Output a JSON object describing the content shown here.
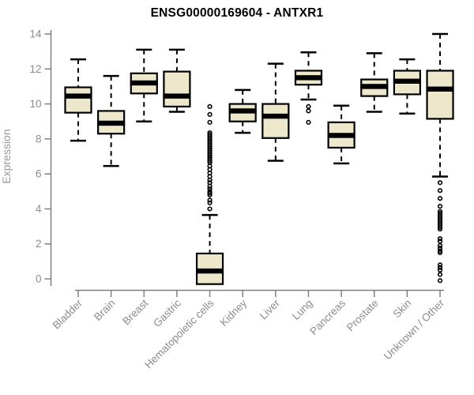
{
  "chart_data": {
    "type": "boxplot",
    "title": "ENSG00000169604 - ANTXR1",
    "ylabel": "Expression",
    "xlabel": "",
    "ylim": [
      0,
      14
    ],
    "yticks": [
      0,
      2,
      4,
      6,
      8,
      10,
      12,
      14
    ],
    "grid": false,
    "legend": false,
    "categories": [
      "Bladder",
      "Brain",
      "Breast",
      "Gastric",
      "Hematopoietic cells",
      "Kidney",
      "Liver",
      "Lung",
      "Pancreas",
      "Prostate",
      "Skin",
      "Unknown / Other"
    ],
    "boxes": [
      {
        "category": "Bladder",
        "whisker_low": 7.9,
        "q1": 9.5,
        "median": 10.45,
        "q3": 10.95,
        "whisker_high": 12.55,
        "outliers": []
      },
      {
        "category": "Brain",
        "whisker_low": 6.45,
        "q1": 8.3,
        "median": 8.9,
        "q3": 9.6,
        "whisker_high": 11.6,
        "outliers": []
      },
      {
        "category": "Breast",
        "whisker_low": 9.0,
        "q1": 10.6,
        "median": 11.2,
        "q3": 11.75,
        "whisker_high": 13.1,
        "outliers": []
      },
      {
        "category": "Gastric",
        "whisker_low": 9.55,
        "q1": 9.85,
        "median": 10.45,
        "q3": 11.85,
        "whisker_high": 13.1,
        "outliers": []
      },
      {
        "category": "Hematopoietic cells",
        "whisker_low": -0.3,
        "q1": -0.3,
        "median": 0.45,
        "q3": 1.45,
        "whisker_high": 3.65,
        "outliers": [
          9.85,
          9.4,
          8.95,
          8.35,
          8.25,
          8.15,
          8.05,
          7.95,
          7.85,
          7.75,
          7.65,
          7.55,
          7.45,
          7.35,
          7.25,
          7.15,
          7.05,
          6.95,
          6.85,
          6.75,
          6.65,
          6.45,
          6.25,
          6.05,
          5.85,
          5.65,
          5.5,
          5.3,
          5.15,
          5.0,
          4.9,
          4.8,
          4.5,
          4.35,
          4.0
        ]
      },
      {
        "category": "Kidney",
        "whisker_low": 8.35,
        "q1": 9.0,
        "median": 9.6,
        "q3": 10.0,
        "whisker_high": 10.8,
        "outliers": []
      },
      {
        "category": "Liver",
        "whisker_low": 6.75,
        "q1": 8.05,
        "median": 9.3,
        "q3": 10.0,
        "whisker_high": 12.3,
        "outliers": []
      },
      {
        "category": "Lung",
        "whisker_low": 10.25,
        "q1": 11.1,
        "median": 11.5,
        "q3": 11.9,
        "whisker_high": 12.95,
        "outliers": [
          9.85,
          9.6,
          8.95
        ]
      },
      {
        "category": "Pancreas",
        "whisker_low": 6.6,
        "q1": 7.5,
        "median": 8.2,
        "q3": 8.95,
        "whisker_high": 9.9,
        "outliers": []
      },
      {
        "category": "Prostate",
        "whisker_low": 9.55,
        "q1": 10.45,
        "median": 11.0,
        "q3": 11.4,
        "whisker_high": 12.9,
        "outliers": []
      },
      {
        "category": "Skin",
        "whisker_low": 9.45,
        "q1": 10.55,
        "median": 11.3,
        "q3": 11.9,
        "whisker_high": 12.55,
        "outliers": []
      },
      {
        "category": "Unknown / Other",
        "whisker_low": 5.85,
        "q1": 9.15,
        "median": 10.85,
        "q3": 11.9,
        "whisker_high": 14.0,
        "outliers": [
          5.5,
          5.05,
          4.6,
          4.15,
          3.85,
          3.75,
          3.65,
          3.55,
          3.45,
          3.35,
          3.25,
          3.15,
          3.05,
          2.95,
          2.85,
          2.3,
          2.15,
          1.9,
          1.75,
          1.6,
          1.5,
          0.8,
          0.65,
          0.5,
          0.25,
          -0.1
        ]
      }
    ],
    "colors": {
      "background": "#FFFFFF",
      "box_fill": "#EDE8CC",
      "box_stroke": "#000000",
      "median": "#000000",
      "whisker": "#000000",
      "outlier": "#000000",
      "axis": "#808080",
      "tick_label": "#8C8C8C",
      "axis_label": "#999999",
      "title": "#000000"
    }
  }
}
